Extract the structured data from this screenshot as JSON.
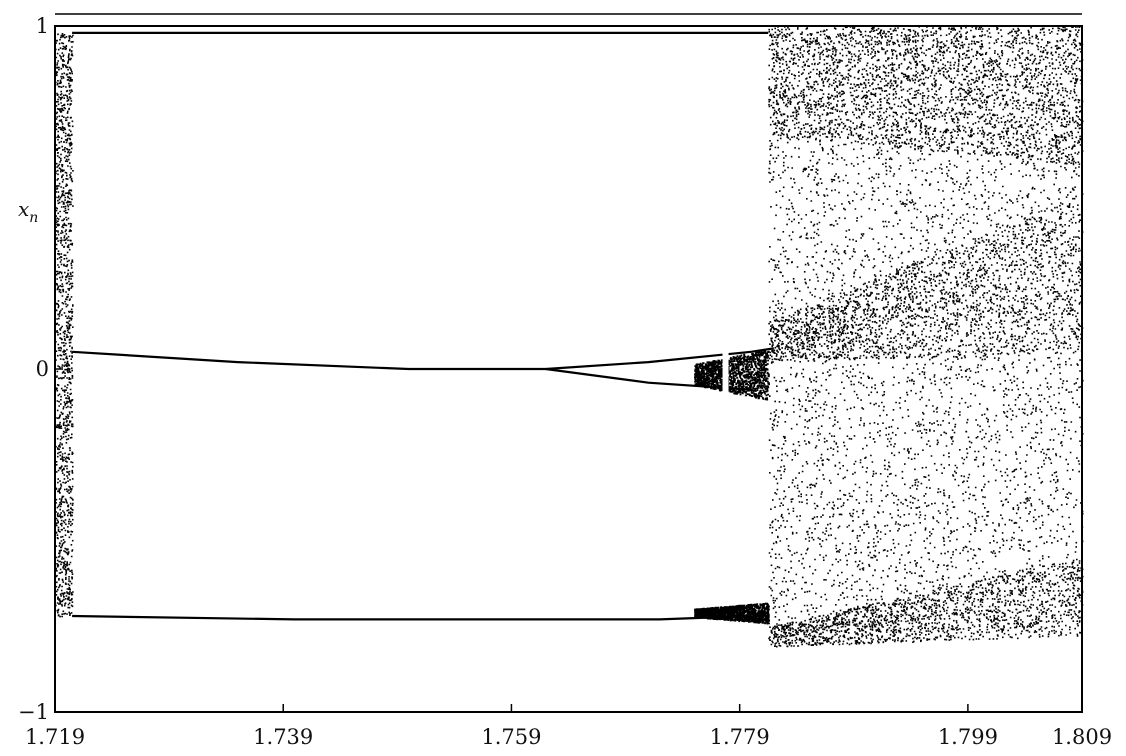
{
  "chart_data": {
    "type": "scatter",
    "title": "",
    "xlabel": "",
    "ylabel": "x_n",
    "ylabel_main": "x",
    "ylabel_sub": "n",
    "xlim": [
      1.719,
      1.809
    ],
    "ylim": [
      -1,
      1
    ],
    "xticks": [
      {
        "value": 1.719,
        "label": "1.719"
      },
      {
        "value": 1.739,
        "label": "1.739"
      },
      {
        "value": 1.759,
        "label": "1.759"
      },
      {
        "value": 1.779,
        "label": "1.779"
      },
      {
        "value": 1.799,
        "label": "1.799"
      },
      {
        "value": 1.809,
        "label": "1.809"
      }
    ],
    "yticks": [
      {
        "value": -1,
        "label": "−1"
      },
      {
        "value": 0,
        "label": "0"
      },
      {
        "value": 1,
        "label": "1"
      }
    ],
    "grid": false,
    "legend": "none",
    "series": [
      {
        "kind": "chaotic-band",
        "x": [
          1.719,
          1.7205
        ],
        "y_low": -0.72,
        "y_high": 0.98
      },
      {
        "kind": "upper-branch",
        "x": [
          1.7205,
          1.735,
          1.75,
          1.762,
          1.771,
          1.78,
          1.782
        ],
        "y": [
          0.05,
          0.02,
          0.0,
          0.0,
          0.02,
          0.05,
          0.06
        ]
      },
      {
        "kind": "lower-branch-middle",
        "x": [
          1.762,
          1.771,
          1.78
        ],
        "y": [
          0.0,
          -0.04,
          -0.06
        ]
      },
      {
        "kind": "bottom-branch",
        "x": [
          1.7205,
          1.74,
          1.76,
          1.772,
          1.78
        ],
        "y": [
          -0.72,
          -0.73,
          -0.73,
          -0.73,
          -0.72
        ]
      },
      {
        "kind": "top-edge",
        "x": [
          1.7205,
          1.7815
        ],
        "y": [
          0.98,
          0.98
        ]
      },
      {
        "kind": "window-bands",
        "x": [
          1.775,
          1.7815
        ],
        "bands": [
          [
            -0.09,
            0.06
          ],
          [
            -0.74,
            -0.68
          ]
        ]
      },
      {
        "kind": "chaotic-region",
        "x": [
          1.7815,
          1.809
        ],
        "y_low": -0.76,
        "y_high": 1.0
      }
    ]
  }
}
